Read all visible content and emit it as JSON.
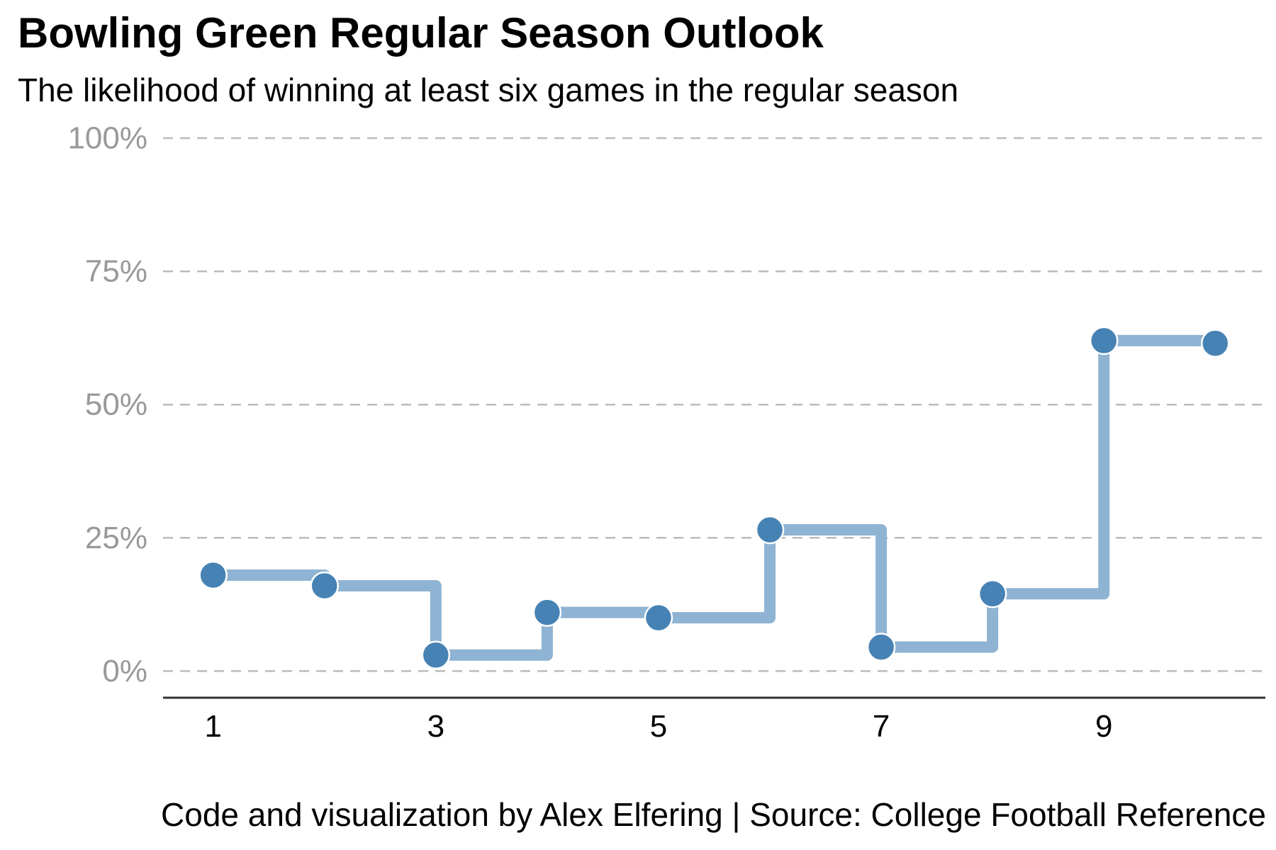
{
  "chart_data": {
    "type": "line",
    "title": "Bowling Green Regular Season Outlook",
    "subtitle": "The likelihood of winning at least six games in the regular season",
    "caption": "Code and visualization by Alex Elfering | Source: College Football Reference",
    "xlabel": "",
    "ylabel": "",
    "x": [
      1,
      2,
      3,
      4,
      5,
      6,
      7,
      8,
      9,
      10
    ],
    "x_tick_values": [
      1,
      3,
      5,
      7,
      9
    ],
    "x_tick_labels": [
      "1",
      "3",
      "5",
      "7",
      "9"
    ],
    "xlim": [
      0.55,
      10.45
    ],
    "ylim": [
      -0.05,
      1.0
    ],
    "y_tick_values": [
      0,
      0.25,
      0.5,
      0.75,
      1.0
    ],
    "y_tick_labels": [
      "0%",
      "25%",
      "50%",
      "75%",
      "100%"
    ],
    "series": [
      {
        "values": [
          0.18,
          0.16,
          0.03,
          0.11,
          0.1,
          0.265,
          0.045,
          0.145,
          0.62,
          0.615
        ]
      }
    ],
    "step": "horizontal-then-vertical",
    "grid": "horizontal dashed",
    "legend": "none",
    "colors": {
      "line": "#8fb3d2",
      "point": "#4682b4",
      "point_outline": "#ffffff",
      "grid": "#bbbbbb",
      "axis": "#333333",
      "ytick_text": "#999999",
      "xtick_text": "#000000"
    }
  }
}
